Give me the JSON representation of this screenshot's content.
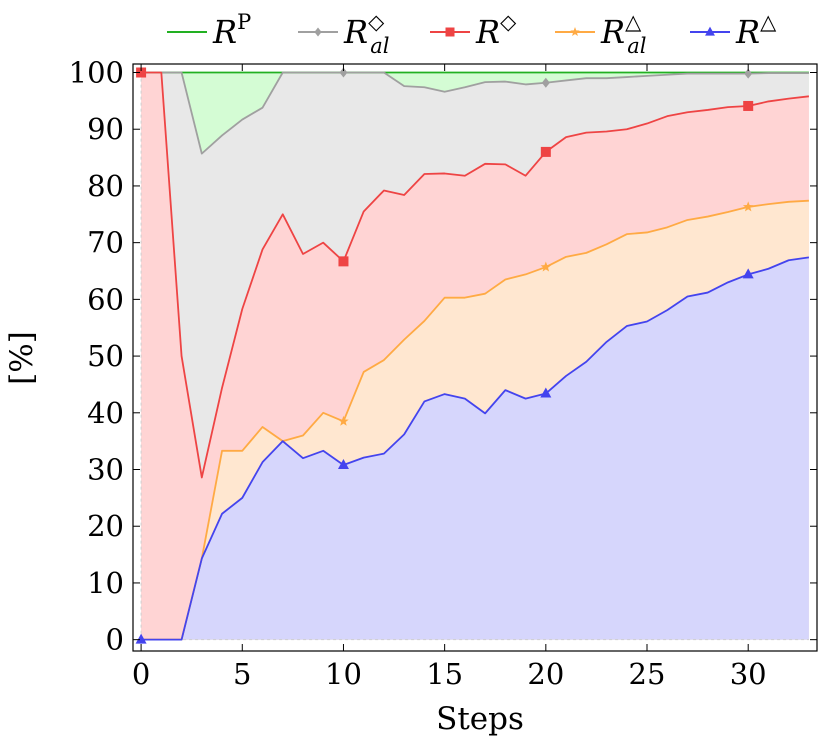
{
  "chart_data": {
    "type": "area",
    "xlabel": "Steps",
    "ylabel": "[%]",
    "xlim": [
      -0.4,
      33.4
    ],
    "ylim": [
      -2,
      101.5
    ],
    "x_ticks": [
      0,
      5,
      10,
      15,
      20,
      25,
      30
    ],
    "y_ticks": [
      0,
      10,
      20,
      30,
      40,
      50,
      60,
      70,
      80,
      90,
      100
    ],
    "legend_position": "top",
    "legend": [
      {
        "base": "R",
        "sup": "P",
        "sub": "",
        "marker": "none"
      },
      {
        "base": "R",
        "sup": "◇",
        "sub": "al",
        "marker": "diamond"
      },
      {
        "base": "R",
        "sup": "◇",
        "sub": "",
        "marker": "square"
      },
      {
        "base": "R",
        "sup": "△",
        "sub": "al",
        "marker": "star"
      },
      {
        "base": "R",
        "sup": "△",
        "sub": "",
        "marker": "triangle"
      }
    ],
    "x": [
      0,
      1,
      2,
      3,
      4,
      5,
      6,
      7,
      8,
      9,
      10,
      11,
      12,
      13,
      14,
      15,
      16,
      17,
      18,
      19,
      20,
      21,
      22,
      23,
      24,
      25,
      26,
      27,
      28,
      29,
      30,
      31,
      32,
      33
    ],
    "series": [
      {
        "color": "#22b022",
        "fill": "#d4fcd4",
        "marker": "none",
        "mark_every": [],
        "values": [
          100,
          100,
          100,
          100,
          100,
          100,
          100,
          100,
          100,
          100,
          100,
          100,
          100,
          100,
          100,
          100,
          100,
          100,
          100,
          100,
          100,
          100,
          100,
          100,
          100,
          100,
          100,
          100,
          100,
          100,
          100,
          100,
          100,
          100
        ]
      },
      {
        "color": "#a0a0a0",
        "fill": "#e8e8e8",
        "marker": "diamond",
        "mark_every": [
          0,
          10,
          20,
          30
        ],
        "values": [
          100,
          100,
          100,
          85.7,
          88.9,
          91.7,
          93.8,
          100,
          100,
          100,
          100,
          100,
          100,
          97.6,
          97.4,
          96.6,
          97.4,
          98.3,
          98.4,
          97.9,
          98.2,
          98.6,
          99.0,
          99.0,
          99.2,
          99.4,
          99.6,
          99.8,
          99.8,
          99.8,
          99.8,
          99.9,
          99.9,
          99.9
        ]
      },
      {
        "color": "#ee4444",
        "fill": "#ffd4d4",
        "marker": "square",
        "mark_every": [
          0,
          10,
          20,
          30
        ],
        "values": [
          100,
          100,
          50,
          28.6,
          44.4,
          58.3,
          68.8,
          75.0,
          68.0,
          70.0,
          66.7,
          75.5,
          79.2,
          78.4,
          82.1,
          82.2,
          81.8,
          83.9,
          83.8,
          81.8,
          86.0,
          88.6,
          89.4,
          89.6,
          90.0,
          91.0,
          92.3,
          93.0,
          93.4,
          93.9,
          94.1,
          94.9,
          95.4,
          95.8
        ]
      },
      {
        "color": "#ffaa44",
        "fill": "#ffe7d0",
        "marker": "star",
        "mark_every": [
          10,
          20,
          30
        ],
        "values": [
          0,
          0,
          0,
          14.3,
          33.3,
          33.3,
          37.5,
          35.0,
          36.0,
          40.0,
          38.5,
          47.2,
          49.3,
          52.9,
          56.2,
          60.3,
          60.3,
          61.0,
          63.5,
          64.4,
          65.7,
          67.5,
          68.2,
          69.7,
          71.5,
          71.8,
          72.7,
          74.0,
          74.6,
          75.4,
          76.3,
          76.8,
          77.2,
          77.4
        ]
      },
      {
        "color": "#4444ee",
        "fill": "#d6d6fc",
        "marker": "triangle",
        "mark_every": [
          0,
          10,
          20,
          30
        ],
        "values": [
          0,
          0,
          0,
          14.3,
          22.2,
          25.0,
          31.3,
          35.0,
          32.0,
          33.3,
          30.8,
          32.1,
          32.8,
          36.2,
          42.0,
          43.3,
          42.5,
          39.9,
          44.0,
          42.5,
          43.4,
          46.5,
          49.0,
          52.5,
          55.3,
          56.1,
          58.1,
          60.5,
          61.2,
          63.0,
          64.4,
          65.4,
          66.9,
          67.4
        ]
      }
    ]
  }
}
